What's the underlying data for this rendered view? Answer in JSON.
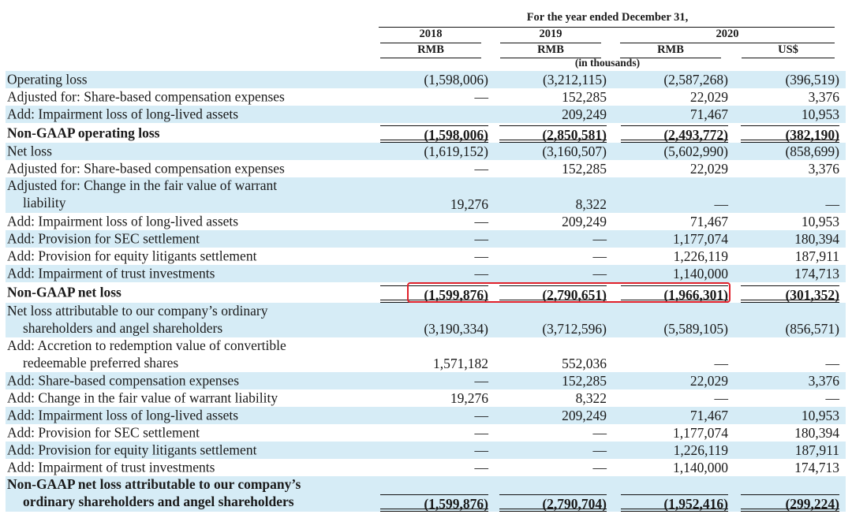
{
  "header": {
    "period_title": "For the year ended December 31,",
    "years": [
      "2018",
      "2019",
      "2020"
    ],
    "currencies": [
      "RMB",
      "RMB",
      "RMB",
      "US$"
    ],
    "units": "(in thousands)"
  },
  "rows": [
    {
      "label": "Operating loss",
      "values": [
        "(1,598,006)",
        "(3,212,115)",
        "(2,587,268)",
        "(396,519)"
      ]
    },
    {
      "label": "Adjusted for: Share-based compensation expenses",
      "values": [
        "—",
        "152,285",
        "22,029",
        "3,376"
      ]
    },
    {
      "label": "Add: Impairment loss of long-lived assets",
      "values": [
        "",
        "209,249",
        "71,467",
        "10,953"
      ]
    },
    {
      "label": "Non-GAAP operating loss",
      "values": [
        "(1,598,006)",
        "(2,850,581)",
        "(2,493,772)",
        "(382,190)"
      ]
    },
    {
      "label": "Net loss",
      "values": [
        "(1,619,152)",
        "(3,160,507)",
        "(5,602,990)",
        "(858,699)"
      ]
    },
    {
      "label": "Adjusted for: Share-based compensation expenses",
      "values": [
        "—",
        "152,285",
        "22,029",
        "3,376"
      ]
    },
    {
      "label": "Adjusted for: Change in the fair value of warrant",
      "label2": "liability",
      "values": [
        "19,276",
        "8,322",
        "—",
        "—"
      ]
    },
    {
      "label": "Add: Impairment loss of long-lived assets",
      "values": [
        "—",
        "209,249",
        "71,467",
        "10,953"
      ]
    },
    {
      "label": "Add: Provision for SEC settlement",
      "values": [
        "—",
        "—",
        "1,177,074",
        "180,394"
      ]
    },
    {
      "label": "Add: Provision for equity litigants settlement",
      "values": [
        "—",
        "—",
        "1,226,119",
        "187,911"
      ]
    },
    {
      "label": "Add: Impairment of trust investments",
      "values": [
        "—",
        "—",
        "1,140,000",
        "174,713"
      ]
    },
    {
      "label": "Non-GAAP net loss",
      "values": [
        "(1,599,876)",
        "(2,790,651)",
        "(1,966,301)",
        "(301,352)"
      ]
    },
    {
      "label": "Net loss attributable to our company’s ordinary",
      "label2": "shareholders and angel shareholders",
      "values": [
        "(3,190,334)",
        "(3,712,596)",
        "(5,589,105)",
        "(856,571)"
      ]
    },
    {
      "label": "Add: Accretion to redemption value of convertible",
      "label2": "redeemable preferred shares",
      "values": [
        "1,571,182",
        "552,036",
        "—",
        "—"
      ]
    },
    {
      "label": "Add: Share-based compensation expenses",
      "values": [
        "—",
        "152,285",
        "22,029",
        "3,376"
      ]
    },
    {
      "label": "Add: Change in the fair value of warrant liability",
      "values": [
        "19,276",
        "8,322",
        "—",
        "—"
      ]
    },
    {
      "label": "Add: Impairment loss of long-lived assets",
      "values": [
        "—",
        "209,249",
        "71,467",
        "10,953"
      ]
    },
    {
      "label": "Add: Provision for SEC settlement",
      "values": [
        "—",
        "—",
        "1,177,074",
        "180,394"
      ]
    },
    {
      "label": "Add: Provision for equity litigants settlement",
      "values": [
        "—",
        "—",
        "1,226,119",
        "187,911"
      ]
    },
    {
      "label": "Add: Impairment of trust investments",
      "values": [
        "—",
        "—",
        "1,140,000",
        "174,713"
      ]
    },
    {
      "label": "Non-GAAP net loss attributable to our company’s",
      "label2": "ordinary shareholders and angel shareholders",
      "values": [
        "(1,599,876)",
        "(2,790,704)",
        "(1,952,416)",
        "(299,224)"
      ]
    }
  ],
  "colors": {
    "band": "#d6ecf6",
    "highlight": "#e0202a"
  }
}
